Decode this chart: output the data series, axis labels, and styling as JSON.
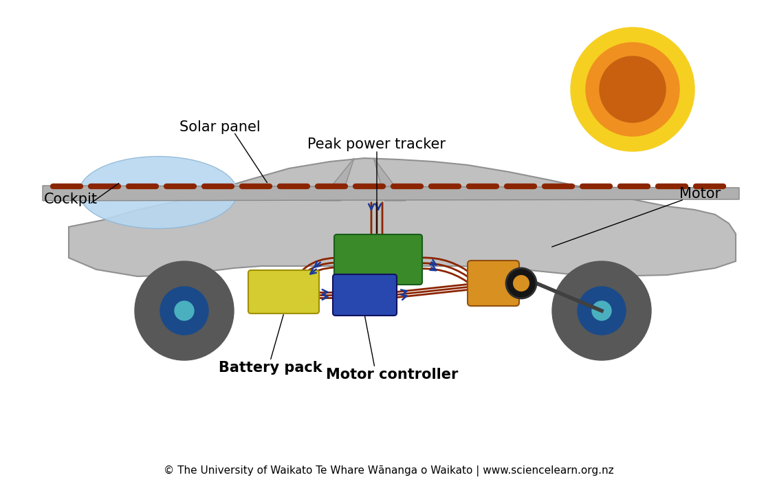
{
  "background_color": "#ffffff",
  "car_body_color": "#c0c0c0",
  "cockpit_color": "#b8d8f0",
  "wheel_outer_color": "#585858",
  "wheel_inner_color": "#1a4a8a",
  "wheel_hub_color": "#4ab0c0",
  "solar_panel_top_color": "#b0b0b0",
  "solar_panel_bot_color": "#989898",
  "solar_cell_color": "#8B2500",
  "peak_tracker_color": "#3a8a2a",
  "battery_color": "#d4cc30",
  "motor_ctrl_color": "#2848b0",
  "motor_body_color": "#d89020",
  "motor_ring_color": "#202020",
  "motor_inner_color": "#d89020",
  "wire_color": "#8B2500",
  "arrow_color": "#1a3a9a",
  "sun_outer_color": "#f5d020",
  "sun_middle_color": "#f09020",
  "sun_inner_color": "#c86010",
  "axle_color": "#404040",
  "footer_text": "© The University of Waikato Te Whare Wānanga o Waikato | www.sciencelearn.org.nz",
  "labels": {
    "solar_panel": "Solar panel",
    "peak_power_tracker": "Peak power tracker",
    "cockpit": "Cockpit",
    "motor": "Motor",
    "battery_pack": "Battery pack",
    "motor_controller": "Motor controller"
  },
  "label_fontsize": 15,
  "footer_fontsize": 11
}
